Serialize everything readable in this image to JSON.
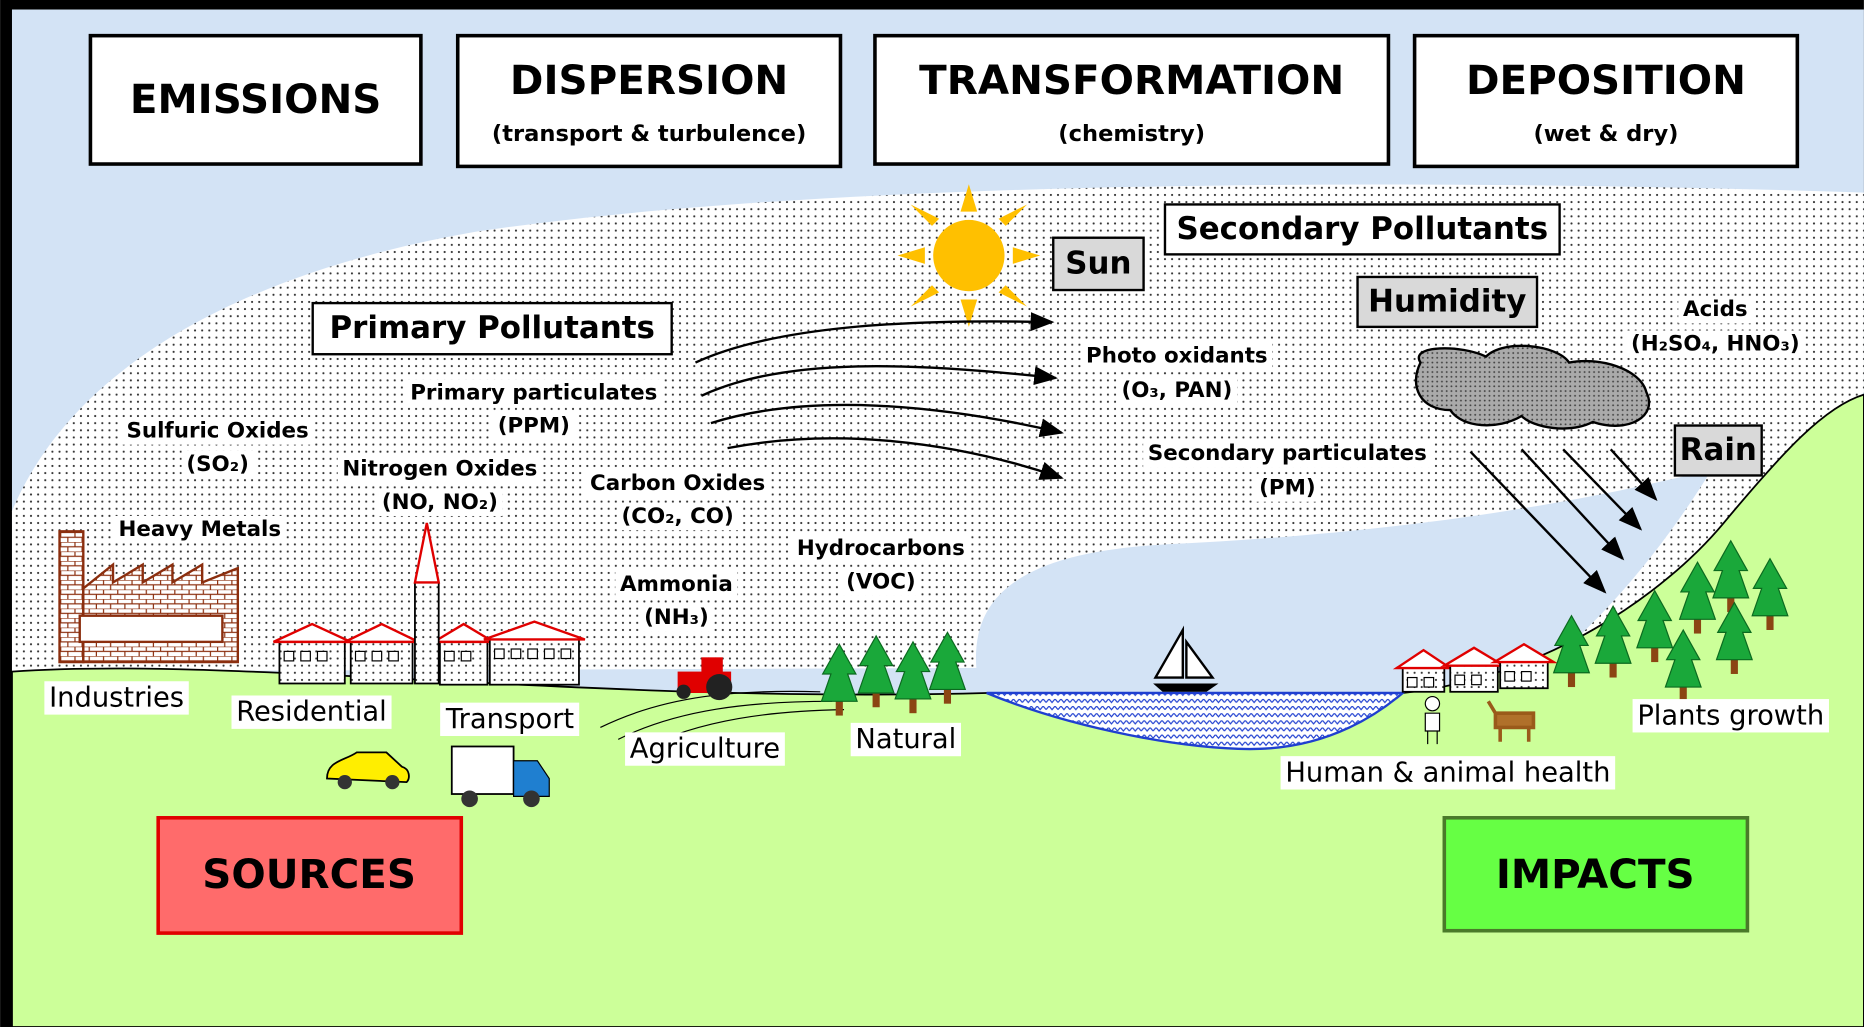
{
  "stages": [
    {
      "title": "EMISSIONS"
    },
    {
      "title": "DISPERSION",
      "subtitle": "(transport & turbulence)"
    },
    {
      "title": "TRANSFORMATION",
      "subtitle": "(chemistry)"
    },
    {
      "title": "DEPOSITION",
      "subtitle": "(wet & dry)"
    }
  ],
  "primary": {
    "title": "Primary Pollutants",
    "items": [
      {
        "name": "Sulfuric Oxides",
        "formula": "(SO₂)"
      },
      {
        "name": "Heavy Metals"
      },
      {
        "name": "Nitrogen Oxides",
        "formula": "(NO, NO₂)"
      },
      {
        "name": "Primary particulates",
        "formula": "(PPM)"
      },
      {
        "name": "Carbon Oxides",
        "formula": "(CO₂, CO)"
      },
      {
        "name": "Ammonia",
        "formula": "(NH₃)"
      },
      {
        "name": "Hydrocarbons",
        "formula": "(VOC)"
      }
    ]
  },
  "secondary": {
    "title": "Secondary Pollutants",
    "factors": [
      "Sun",
      "Humidity",
      "Rain"
    ],
    "items": [
      {
        "name": "Photo oxidants",
        "formula": "(O₃, PAN)"
      },
      {
        "name": "Secondary particulates",
        "formula": "(PM)"
      },
      {
        "name": "Acids",
        "formula": "(H₂SO₄, HNO₃)"
      }
    ]
  },
  "sources": {
    "title": "SOURCES",
    "items": [
      "Industries",
      "Residential",
      "Transport",
      "Agriculture",
      "Natural"
    ]
  },
  "impacts": {
    "title": "IMPACTS",
    "items": [
      "Human & animal health",
      "Plants growth"
    ]
  }
}
